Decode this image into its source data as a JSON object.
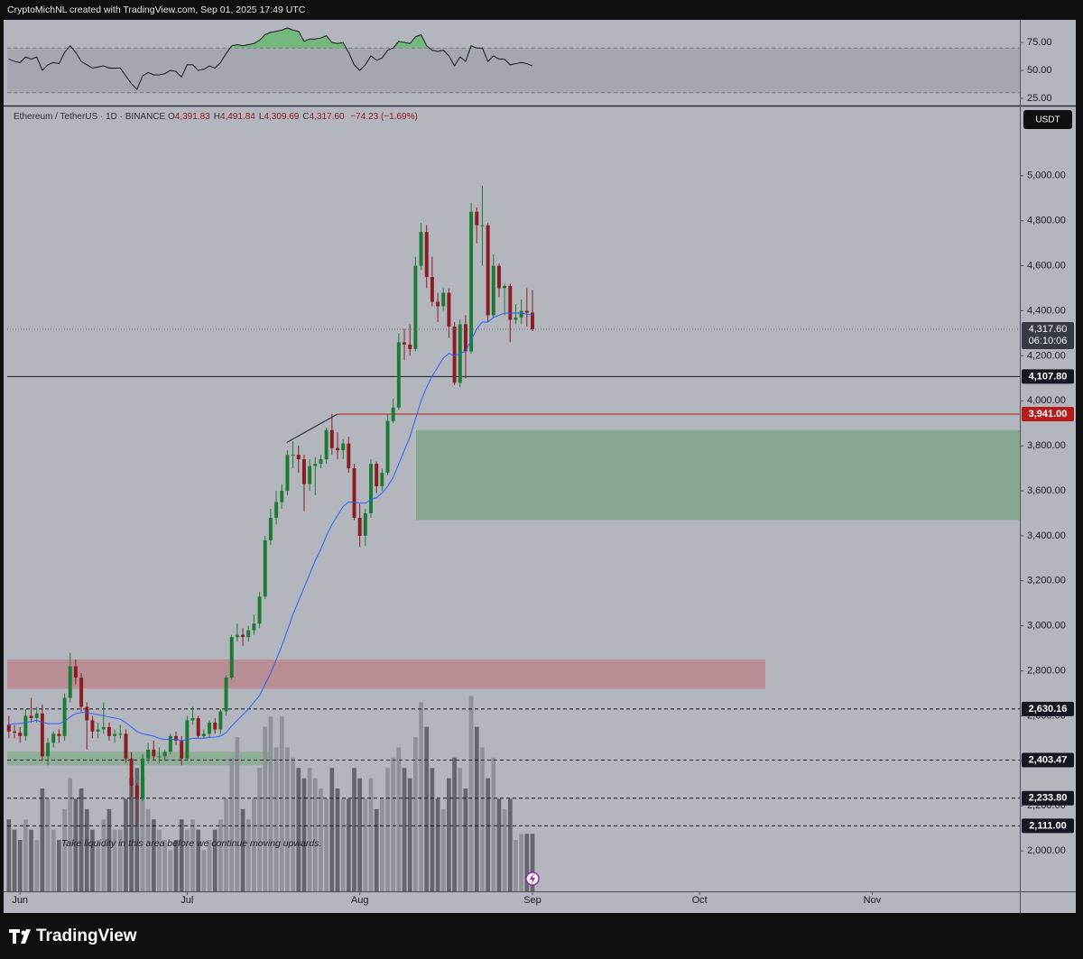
{
  "header": {
    "text": "CryptoMichNL created with TradingView.com, Sep 01, 2025 17:49 UTC"
  },
  "footer": {
    "brand": "TradingView"
  },
  "chart_data": [
    {
      "type": "candlestick",
      "title": "Ethereum / TetherUS · 1D · BINANCE",
      "ohlc": [
        {
          "key": "O",
          "label": "4,391.83"
        },
        {
          "key": "H",
          "label": "4,491.84"
        },
        {
          "key": "L",
          "label": "4,309.69"
        },
        {
          "key": "C",
          "label": "4,317.60"
        }
      ],
      "change": "−74.23 (−1.69%)",
      "currency": "USDT",
      "last_price_label": "4,317.60",
      "countdown": "06:10:06",
      "xlim": [
        -0.3,
        181.5
      ],
      "xticks": [
        {
          "value": 2,
          "label": "Jun"
        },
        {
          "value": 32,
          "label": "Jul"
        },
        {
          "value": 63,
          "label": "Aug"
        },
        {
          "value": 94,
          "label": "Sep"
        },
        {
          "value": 124,
          "label": "Oct"
        },
        {
          "value": 155,
          "label": "Nov"
        }
      ],
      "ylim": [
        1820,
        5308
      ],
      "yticks": [
        {
          "value": 2000,
          "label": "2,000.00"
        },
        {
          "value": 2200,
          "label": "2,200.00"
        },
        {
          "value": 2400,
          "label": "2,400.00"
        },
        {
          "value": 2600,
          "label": "2,600.00"
        },
        {
          "value": 2800,
          "label": "2,800.00"
        },
        {
          "value": 3000,
          "label": "3,000.00"
        },
        {
          "value": 3200,
          "label": "3,200.00"
        },
        {
          "value": 3400,
          "label": "3,400.00"
        },
        {
          "value": 3600,
          "label": "3,600.00"
        },
        {
          "value": 3800,
          "label": "3,800.00"
        },
        {
          "value": 4000,
          "label": "4,000.00"
        },
        {
          "value": 4200,
          "label": "4,200.00"
        },
        {
          "value": 4400,
          "label": "4,400.00"
        },
        {
          "value": 4600,
          "label": "4,600.00"
        },
        {
          "value": 4800,
          "label": "4,800.00"
        },
        {
          "value": 5000,
          "label": "5,000.00"
        }
      ],
      "up_color": "#1e7a32",
      "down_color": "#8a1c22",
      "open": [
        2560,
        2530,
        2525,
        2510,
        2600,
        2590,
        2610,
        2420,
        2480,
        2520,
        2510,
        2680,
        2820,
        2770,
        2640,
        2580,
        2530,
        2540,
        2550,
        2510,
        2520,
        2520,
        2410,
        2290,
        2230,
        2410,
        2450,
        2420,
        2420,
        2440,
        2510,
        2490,
        2410,
        2580,
        2590,
        2510,
        2520,
        2570,
        2540,
        2620,
        2770,
        2950,
        2960,
        2950,
        2980,
        3010,
        3130,
        3380,
        3480,
        3550,
        3600,
        3760,
        3760,
        3740,
        3630,
        3710,
        3720,
        3740,
        3870,
        3790,
        3780,
        3810,
        3700,
        3480,
        3400,
        3500,
        3720,
        3620,
        3680,
        3910,
        3970,
        4260,
        4250,
        4230,
        4600,
        4750,
        4550,
        4440,
        4420,
        4480,
        4330,
        4080,
        4340,
        4220,
        4840,
        4780,
        4780,
        4380,
        4600,
        4500,
        4510,
        4360,
        4370,
        4400,
        4391.83
      ],
      "high": [
        2600,
        2560,
        2550,
        2630,
        2680,
        2640,
        2650,
        2500,
        2530,
        2540,
        2700,
        2880,
        2850,
        2790,
        2660,
        2600,
        2570,
        2660,
        2570,
        2540,
        2560,
        2540,
        2440,
        2300,
        2430,
        2480,
        2490,
        2460,
        2450,
        2520,
        2530,
        2510,
        2600,
        2640,
        2600,
        2540,
        2580,
        2590,
        2630,
        2780,
        2960,
        3010,
        2990,
        3000,
        3050,
        3150,
        3400,
        3520,
        3600,
        3630,
        3780,
        3820,
        3800,
        3760,
        3740,
        3750,
        3760,
        3880,
        3941,
        3860,
        3830,
        3840,
        3720,
        3540,
        3520,
        3740,
        3730,
        3700,
        3940,
        4010,
        4300,
        4320,
        4340,
        4640,
        4790,
        4780,
        4640,
        4480,
        4500,
        4500,
        4350,
        4360,
        4380,
        4880,
        4860,
        4955,
        4790,
        4650,
        4610,
        4520,
        4520,
        4430,
        4450,
        4500,
        4491.84
      ],
      "low": [
        2500,
        2500,
        2480,
        2490,
        2570,
        2570,
        2400,
        2380,
        2460,
        2480,
        2490,
        2660,
        2740,
        2620,
        2450,
        2500,
        2500,
        2520,
        2490,
        2480,
        2500,
        2390,
        2240,
        2110,
        2220,
        2390,
        2400,
        2390,
        2400,
        2430,
        2470,
        2380,
        2400,
        2560,
        2500,
        2500,
        2500,
        2520,
        2520,
        2600,
        2760,
        2930,
        2910,
        2930,
        2960,
        2990,
        3120,
        3360,
        3450,
        3520,
        3580,
        3700,
        3680,
        3510,
        3600,
        3580,
        3700,
        3720,
        3760,
        3740,
        3740,
        3680,
        3470,
        3350,
        3355,
        3480,
        3590,
        3600,
        3670,
        3900,
        3960,
        4180,
        4200,
        4220,
        4580,
        4500,
        4420,
        4350,
        4400,
        4280,
        4070,
        4060,
        4100,
        4210,
        4700,
        4600,
        4350,
        4370,
        4460,
        4380,
        4260,
        4340,
        4340,
        4330,
        4309.69
      ],
      "close": [
        2530,
        2525,
        2510,
        2600,
        2590,
        2610,
        2420,
        2480,
        2520,
        2510,
        2680,
        2820,
        2770,
        2640,
        2580,
        2530,
        2540,
        2550,
        2510,
        2520,
        2520,
        2410,
        2290,
        2230,
        2410,
        2450,
        2420,
        2420,
        2440,
        2510,
        2490,
        2410,
        2580,
        2590,
        2510,
        2520,
        2570,
        2540,
        2620,
        2770,
        2950,
        2960,
        2950,
        2980,
        3010,
        3130,
        3380,
        3480,
        3550,
        3600,
        3760,
        3760,
        3740,
        3630,
        3710,
        3720,
        3740,
        3870,
        3790,
        3780,
        3810,
        3700,
        3480,
        3400,
        3500,
        3720,
        3620,
        3680,
        3910,
        3970,
        4260,
        4250,
        4230,
        4600,
        4750,
        4550,
        4440,
        4420,
        4480,
        4330,
        4080,
        4340,
        4220,
        4840,
        4780,
        4780,
        4380,
        4600,
        4500,
        4510,
        4360,
        4370,
        4400,
        4391.83,
        4317.6
      ],
      "ma": {
        "color": "#2962ff",
        "values": [
          2560,
          2565,
          2565,
          2570,
          2575,
          2580,
          2570,
          2565,
          2565,
          2565,
          2575,
          2595,
          2610,
          2615,
          2615,
          2610,
          2605,
          2600,
          2595,
          2590,
          2585,
          2570,
          2550,
          2530,
          2520,
          2515,
          2510,
          2500,
          2495,
          2495,
          2495,
          2490,
          2495,
          2500,
          2500,
          2500,
          2505,
          2505,
          2510,
          2525,
          2555,
          2580,
          2605,
          2630,
          2660,
          2690,
          2740,
          2790,
          2850,
          2910,
          2980,
          3050,
          3110,
          3170,
          3230,
          3290,
          3340,
          3400,
          3450,
          3490,
          3530,
          3550,
          3550,
          3545,
          3545,
          3560,
          3570,
          3590,
          3620,
          3660,
          3720,
          3780,
          3840,
          3920,
          4000,
          4060,
          4110,
          4150,
          4190,
          4210,
          4200,
          4210,
          4220,
          4270,
          4320,
          4350,
          4350,
          4370,
          4380,
          4390,
          4390,
          4390,
          4390,
          4385,
          4380
        ]
      },
      "volume": {
        "ylim": [
          0,
          100
        ],
        "up_color": "#8c8e95",
        "down_color": "#5b5d64",
        "values": [
          35,
          30,
          25,
          35,
          30,
          25,
          50,
          45,
          30,
          25,
          40,
          55,
          45,
          50,
          40,
          30,
          25,
          35,
          40,
          30,
          30,
          45,
          55,
          60,
          55,
          40,
          35,
          30,
          25,
          20,
          25,
          35,
          30,
          35,
          30,
          20,
          25,
          30,
          35,
          45,
          65,
          75,
          40,
          35,
          45,
          60,
          80,
          85,
          70,
          85,
          70,
          65,
          60,
          55,
          60,
          55,
          50,
          45,
          60,
          50,
          45,
          45,
          60,
          55,
          45,
          55,
          40,
          45,
          60,
          65,
          70,
          60,
          55,
          75,
          92,
          80,
          60,
          45,
          40,
          55,
          65,
          60,
          50,
          95,
          80,
          70,
          55,
          65,
          45,
          40,
          45,
          25,
          28,
          28,
          28
        ]
      },
      "levels": [
        {
          "value": 4107.8,
          "label": "4,107.80",
          "color": "#131722",
          "dashed": false
        },
        {
          "value": 3941,
          "label": "3,941.00",
          "color": "#b71c1c",
          "dashed": false,
          "from": 59
        },
        {
          "value": 2630.16,
          "label": "2,630.16",
          "color": "#131722",
          "dashed": true
        },
        {
          "value": 2403.47,
          "label": "2,403.47",
          "color": "#131722",
          "dashed": true
        },
        {
          "value": 2233.8,
          "label": "2,233.80",
          "color": "#131722",
          "dashed": true
        },
        {
          "value": 2111,
          "label": "2,111.00",
          "color": "#131722",
          "dashed": true
        }
      ],
      "zones": [
        {
          "x": [
            73.1,
            181.5
          ],
          "y": [
            3470,
            3870
          ],
          "color": "#7fa48a"
        },
        {
          "x": [
            -0.3,
            135.8
          ],
          "y": [
            2720,
            2850
          ],
          "color": "#b9868d"
        },
        {
          "x": [
            -0.3,
            47
          ],
          "y": [
            2380,
            2440
          ],
          "color": "#8aab94"
        }
      ],
      "trendline": {
        "x": [
          49.9,
          59
        ],
        "y": [
          3815,
          3941
        ]
      },
      "annotation": {
        "text": "Take liquidity in this area before we continue moving upwards.",
        "x": 9.4,
        "y": 2032
      }
    },
    {
      "type": "line",
      "color": "#131722",
      "ylim": [
        18.5,
        95.2
      ],
      "yticks": [
        {
          "value": 25,
          "label": "25.00"
        },
        {
          "value": 50,
          "label": "50.00"
        },
        {
          "value": 75,
          "label": "75.00"
        }
      ],
      "band": [
        30,
        70
      ],
      "overbought_color": "#5fb86a",
      "values": [
        60,
        58,
        57,
        62,
        60,
        62,
        50,
        55,
        57,
        56,
        66,
        72,
        66,
        58,
        55,
        52,
        53,
        54,
        52,
        52,
        52,
        45,
        38,
        33,
        45,
        48,
        46,
        46,
        47,
        50,
        49,
        44,
        55,
        55,
        50,
        51,
        54,
        52,
        57,
        65,
        72,
        73,
        72,
        73,
        74,
        77,
        82,
        84,
        85,
        86,
        88,
        86,
        85,
        76,
        78,
        78,
        79,
        81,
        75,
        74,
        75,
        66,
        55,
        50,
        55,
        63,
        59,
        61,
        68,
        70,
        76,
        75,
        74,
        80,
        82,
        72,
        68,
        67,
        68,
        63,
        54,
        62,
        58,
        72,
        70,
        70,
        58,
        63,
        60,
        60,
        55,
        56,
        57,
        56,
        54
      ]
    }
  ]
}
